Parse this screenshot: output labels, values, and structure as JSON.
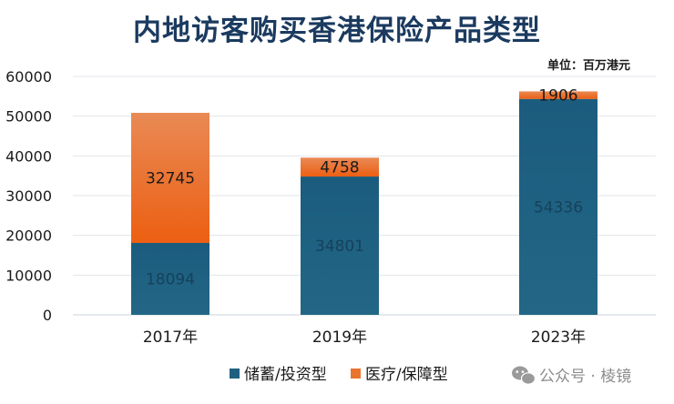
{
  "chart_data": {
    "type": "bar",
    "stacked": true,
    "title": "内地访客购买香港保险产品类型",
    "unit_label": "单位：百万港元",
    "categories": [
      "2017年",
      "2019年",
      "2023年"
    ],
    "series": [
      {
        "name": "储蓄/投资型",
        "values": [
          18094,
          34801,
          54336
        ],
        "color": "#1f5f80"
      },
      {
        "name": "医疗/保障型",
        "values": [
          32745,
          4758,
          1906
        ],
        "color": "#e8742e"
      }
    ],
    "ylim": [
      0,
      60000
    ],
    "yticks": [
      "0",
      "10000",
      "20000",
      "30000",
      "40000",
      "50000",
      "60000"
    ],
    "grid": true,
    "legend_position": "bottom"
  },
  "watermark": {
    "text": "公众号 · 棱镜"
  }
}
